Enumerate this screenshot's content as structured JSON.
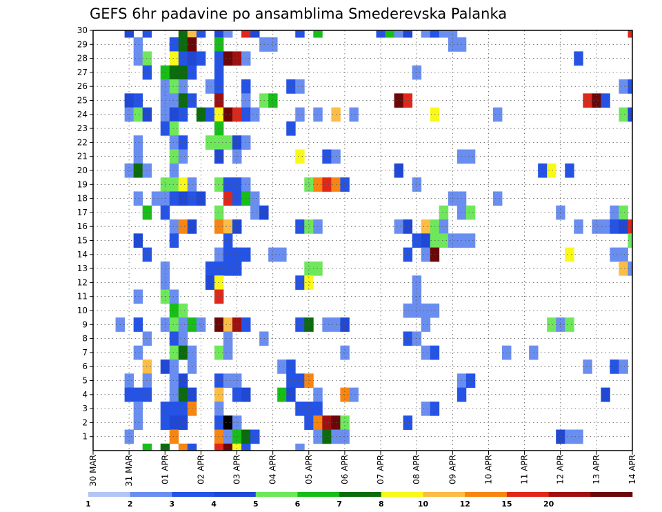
{
  "chart_data": {
    "type": "heatmap",
    "title": "GEFS 6hr padavine po ansamblima Smederevska Palanka",
    "xlabel": "",
    "ylabel": "",
    "x_tick_labels": [
      "30 MAR",
      "31 MAR",
      "01 APR",
      "02 APR",
      "03 APR",
      "04 APR",
      "05 APR",
      "06 APR",
      "07 APR",
      "08 APR",
      "09 APR",
      "10 APR",
      "11 APR",
      "12 APR",
      "13 APR",
      "14 APR"
    ],
    "y_tick_labels": [
      "1",
      "2",
      "3",
      "4",
      "5",
      "6",
      "7",
      "8",
      "9",
      "10",
      "11",
      "12",
      "13",
      "14",
      "15",
      "16",
      "17",
      "18",
      "19",
      "20",
      "21",
      "22",
      "23",
      "24",
      "25",
      "26",
      "27",
      "28",
      "29",
      "30"
    ],
    "x_steps_per_day": 4,
    "x_total_steps": 61,
    "members": 30,
    "grid": true,
    "colorbar": {
      "levels": [
        "1",
        "2",
        "3",
        "4",
        "5",
        "6",
        "7",
        "8",
        "10",
        "12",
        "15",
        "20"
      ],
      "colors": [
        "#b4c5f4",
        "#6a8ef0",
        "#2453e6",
        "#1f48d6",
        "#6ee85a",
        "#17be17",
        "#0c6b0c",
        "#f9f919",
        "#fbbd45",
        "#f68511",
        "#e0281a",
        "#a11010",
        "#6b0707"
      ]
    },
    "cells": [
      [
        4,
        30,
        3
      ],
      [
        6,
        30,
        2
      ],
      [
        10,
        30,
        6
      ],
      [
        11,
        30,
        8
      ],
      [
        12,
        30,
        2
      ],
      [
        14,
        30,
        3
      ],
      [
        15,
        30,
        1
      ],
      [
        17,
        30,
        10
      ],
      [
        18,
        30,
        3
      ],
      [
        23,
        30,
        2
      ],
      [
        25,
        30,
        5
      ],
      [
        32,
        30,
        2
      ],
      [
        33,
        30,
        5
      ],
      [
        34,
        30,
        1
      ],
      [
        35,
        30,
        3
      ],
      [
        37,
        30,
        1
      ],
      [
        38,
        30,
        2
      ],
      [
        39,
        30,
        1
      ],
      [
        40,
        30,
        1
      ],
      [
        60,
        30,
        10
      ],
      [
        5,
        29,
        1
      ],
      [
        9,
        29,
        2
      ],
      [
        10,
        29,
        6
      ],
      [
        11,
        29,
        12
      ],
      [
        14,
        29,
        5
      ],
      [
        19,
        29,
        1
      ],
      [
        20,
        29,
        1
      ],
      [
        40,
        29,
        1
      ],
      [
        41,
        29,
        1
      ],
      [
        5,
        28,
        1
      ],
      [
        6,
        28,
        4
      ],
      [
        9,
        28,
        7
      ],
      [
        10,
        28,
        2
      ],
      [
        11,
        28,
        3
      ],
      [
        12,
        28,
        2
      ],
      [
        14,
        28,
        2
      ],
      [
        15,
        28,
        12
      ],
      [
        16,
        28,
        11
      ],
      [
        17,
        28,
        1
      ],
      [
        54,
        28,
        2
      ],
      [
        6,
        27,
        2
      ],
      [
        8,
        27,
        5
      ],
      [
        9,
        27,
        6
      ],
      [
        10,
        27,
        6
      ],
      [
        11,
        27,
        2
      ],
      [
        14,
        27,
        2
      ],
      [
        36,
        27,
        1
      ],
      [
        8,
        26,
        1
      ],
      [
        9,
        26,
        4
      ],
      [
        10,
        26,
        1
      ],
      [
        13,
        26,
        1
      ],
      [
        14,
        26,
        2
      ],
      [
        17,
        26,
        2
      ],
      [
        22,
        26,
        2
      ],
      [
        23,
        26,
        1
      ],
      [
        59,
        26,
        1
      ],
      [
        60,
        26,
        2
      ],
      [
        4,
        25,
        3
      ],
      [
        5,
        25,
        2
      ],
      [
        8,
        25,
        1
      ],
      [
        9,
        25,
        1
      ],
      [
        10,
        25,
        6
      ],
      [
        11,
        25,
        2
      ],
      [
        14,
        25,
        11
      ],
      [
        17,
        25,
        1
      ],
      [
        19,
        25,
        4
      ],
      [
        20,
        25,
        5
      ],
      [
        34,
        25,
        12
      ],
      [
        35,
        25,
        10
      ],
      [
        55,
        25,
        10
      ],
      [
        56,
        25,
        12
      ],
      [
        57,
        25,
        2
      ],
      [
        4,
        24,
        1
      ],
      [
        5,
        24,
        4
      ],
      [
        6,
        24,
        3
      ],
      [
        8,
        24,
        1
      ],
      [
        9,
        24,
        3
      ],
      [
        10,
        24,
        2
      ],
      [
        12,
        24,
        6
      ],
      [
        13,
        24,
        2
      ],
      [
        14,
        24,
        7
      ],
      [
        15,
        24,
        12
      ],
      [
        16,
        24,
        10
      ],
      [
        17,
        24,
        2
      ],
      [
        18,
        24,
        1
      ],
      [
        23,
        24,
        1
      ],
      [
        25,
        24,
        1
      ],
      [
        27,
        24,
        8
      ],
      [
        29,
        24,
        1
      ],
      [
        38,
        24,
        7
      ],
      [
        45,
        24,
        1
      ],
      [
        59,
        24,
        4
      ],
      [
        60,
        24,
        3
      ],
      [
        8,
        23,
        2
      ],
      [
        9,
        23,
        4
      ],
      [
        14,
        23,
        5
      ],
      [
        22,
        23,
        2
      ],
      [
        5,
        22,
        1
      ],
      [
        9,
        22,
        1
      ],
      [
        10,
        22,
        2
      ],
      [
        13,
        22,
        4
      ],
      [
        14,
        22,
        4
      ],
      [
        15,
        22,
        4
      ],
      [
        16,
        22,
        3
      ],
      [
        17,
        22,
        1
      ],
      [
        5,
        21,
        1
      ],
      [
        9,
        21,
        4
      ],
      [
        10,
        21,
        1
      ],
      [
        14,
        21,
        3
      ],
      [
        16,
        21,
        1
      ],
      [
        23,
        21,
        7
      ],
      [
        26,
        21,
        2
      ],
      [
        27,
        21,
        1
      ],
      [
        41,
        21,
        1
      ],
      [
        42,
        21,
        1
      ],
      [
        4,
        20,
        1
      ],
      [
        5,
        20,
        6
      ],
      [
        6,
        20,
        1
      ],
      [
        9,
        20,
        1
      ],
      [
        34,
        20,
        3
      ],
      [
        50,
        20,
        2
      ],
      [
        51,
        20,
        7
      ],
      [
        53,
        20,
        2
      ],
      [
        8,
        19,
        4
      ],
      [
        9,
        19,
        4
      ],
      [
        10,
        19,
        7
      ],
      [
        11,
        19,
        1
      ],
      [
        14,
        19,
        4
      ],
      [
        15,
        19,
        2
      ],
      [
        16,
        19,
        2
      ],
      [
        17,
        19,
        1
      ],
      [
        24,
        19,
        4
      ],
      [
        25,
        19,
        9
      ],
      [
        26,
        19,
        10
      ],
      [
        27,
        19,
        9
      ],
      [
        28,
        19,
        2
      ],
      [
        36,
        19,
        1
      ],
      [
        5,
        18,
        1
      ],
      [
        7,
        18,
        1
      ],
      [
        8,
        18,
        1
      ],
      [
        9,
        18,
        2
      ],
      [
        10,
        18,
        3
      ],
      [
        11,
        18,
        2
      ],
      [
        12,
        18,
        3
      ],
      [
        15,
        18,
        10
      ],
      [
        16,
        18,
        2
      ],
      [
        17,
        18,
        5
      ],
      [
        18,
        18,
        1
      ],
      [
        40,
        18,
        1
      ],
      [
        41,
        18,
        1
      ],
      [
        45,
        18,
        1
      ],
      [
        6,
        17,
        5
      ],
      [
        8,
        17,
        2
      ],
      [
        14,
        17,
        4
      ],
      [
        18,
        17,
        1
      ],
      [
        19,
        17,
        3
      ],
      [
        39,
        17,
        4
      ],
      [
        41,
        17,
        1
      ],
      [
        42,
        17,
        4
      ],
      [
        52,
        17,
        1
      ],
      [
        58,
        17,
        1
      ],
      [
        59,
        17,
        4
      ],
      [
        9,
        16,
        1
      ],
      [
        10,
        16,
        9
      ],
      [
        11,
        16,
        3
      ],
      [
        14,
        16,
        9
      ],
      [
        15,
        16,
        8
      ],
      [
        16,
        16,
        3
      ],
      [
        23,
        16,
        2
      ],
      [
        24,
        16,
        4
      ],
      [
        25,
        16,
        1
      ],
      [
        34,
        16,
        1
      ],
      [
        35,
        16,
        3
      ],
      [
        37,
        16,
        8
      ],
      [
        38,
        16,
        4
      ],
      [
        39,
        16,
        1
      ],
      [
        54,
        16,
        1
      ],
      [
        56,
        16,
        1
      ],
      [
        57,
        16,
        1
      ],
      [
        58,
        16,
        2
      ],
      [
        59,
        16,
        3
      ],
      [
        60,
        16,
        10
      ],
      [
        61,
        16,
        7
      ],
      [
        5,
        15,
        3
      ],
      [
        9,
        15,
        2
      ],
      [
        15,
        15,
        2
      ],
      [
        36,
        15,
        2
      ],
      [
        37,
        15,
        3
      ],
      [
        38,
        15,
        4
      ],
      [
        39,
        15,
        4
      ],
      [
        40,
        15,
        1
      ],
      [
        41,
        15,
        1
      ],
      [
        42,
        15,
        1
      ],
      [
        60,
        15,
        4
      ],
      [
        6,
        14,
        2
      ],
      [
        14,
        14,
        1
      ],
      [
        15,
        14,
        2
      ],
      [
        16,
        14,
        2
      ],
      [
        17,
        14,
        2
      ],
      [
        20,
        14,
        1
      ],
      [
        21,
        14,
        1
      ],
      [
        35,
        14,
        2
      ],
      [
        37,
        14,
        1
      ],
      [
        38,
        14,
        12
      ],
      [
        53,
        14,
        7
      ],
      [
        58,
        14,
        1
      ],
      [
        59,
        14,
        1
      ],
      [
        8,
        13,
        1
      ],
      [
        13,
        13,
        2
      ],
      [
        14,
        13,
        2
      ],
      [
        15,
        13,
        2
      ],
      [
        16,
        13,
        2
      ],
      [
        24,
        13,
        4
      ],
      [
        25,
        13,
        4
      ],
      [
        59,
        13,
        8
      ],
      [
        60,
        13,
        1
      ],
      [
        8,
        12,
        1
      ],
      [
        13,
        12,
        3
      ],
      [
        14,
        12,
        7
      ],
      [
        23,
        12,
        2
      ],
      [
        24,
        12,
        7
      ],
      [
        36,
        12,
        1
      ],
      [
        5,
        11,
        1
      ],
      [
        8,
        11,
        4
      ],
      [
        9,
        11,
        1
      ],
      [
        14,
        11,
        10
      ],
      [
        36,
        11,
        1
      ],
      [
        9,
        10,
        5
      ],
      [
        10,
        10,
        4
      ],
      [
        35,
        10,
        1
      ],
      [
        36,
        10,
        1
      ],
      [
        37,
        10,
        1
      ],
      [
        38,
        10,
        1
      ],
      [
        3,
        9,
        1
      ],
      [
        5,
        9,
        2
      ],
      [
        8,
        9,
        1
      ],
      [
        9,
        9,
        4
      ],
      [
        10,
        9,
        1
      ],
      [
        11,
        9,
        5
      ],
      [
        12,
        9,
        1
      ],
      [
        14,
        9,
        12
      ],
      [
        15,
        9,
        8
      ],
      [
        16,
        9,
        11
      ],
      [
        17,
        9,
        2
      ],
      [
        23,
        9,
        2
      ],
      [
        24,
        9,
        6
      ],
      [
        26,
        9,
        1
      ],
      [
        27,
        9,
        1
      ],
      [
        28,
        9,
        3
      ],
      [
        37,
        9,
        1
      ],
      [
        51,
        9,
        4
      ],
      [
        52,
        9,
        1
      ],
      [
        53,
        9,
        4
      ],
      [
        6,
        8,
        1
      ],
      [
        9,
        8,
        2
      ],
      [
        10,
        8,
        1
      ],
      [
        15,
        8,
        1
      ],
      [
        19,
        8,
        1
      ],
      [
        35,
        8,
        2
      ],
      [
        36,
        8,
        1
      ],
      [
        5,
        7,
        1
      ],
      [
        9,
        7,
        4
      ],
      [
        10,
        7,
        6
      ],
      [
        11,
        7,
        1
      ],
      [
        14,
        7,
        4
      ],
      [
        15,
        7,
        1
      ],
      [
        28,
        7,
        1
      ],
      [
        37,
        7,
        1
      ],
      [
        38,
        7,
        2
      ],
      [
        46,
        7,
        1
      ],
      [
        49,
        7,
        1
      ],
      [
        6,
        6,
        8
      ],
      [
        8,
        6,
        3
      ],
      [
        9,
        6,
        1
      ],
      [
        11,
        6,
        1
      ],
      [
        21,
        6,
        1
      ],
      [
        22,
        6,
        2
      ],
      [
        55,
        6,
        1
      ],
      [
        58,
        6,
        2
      ],
      [
        59,
        6,
        1
      ],
      [
        4,
        5,
        1
      ],
      [
        6,
        5,
        1
      ],
      [
        9,
        5,
        1
      ],
      [
        10,
        5,
        3
      ],
      [
        14,
        5,
        2
      ],
      [
        15,
        5,
        1
      ],
      [
        16,
        5,
        1
      ],
      [
        22,
        5,
        2
      ],
      [
        23,
        5,
        2
      ],
      [
        24,
        5,
        9
      ],
      [
        41,
        5,
        1
      ],
      [
        42,
        5,
        2
      ],
      [
        4,
        4,
        2
      ],
      [
        5,
        4,
        2
      ],
      [
        6,
        4,
        2
      ],
      [
        9,
        4,
        1
      ],
      [
        10,
        4,
        6
      ],
      [
        11,
        4,
        3
      ],
      [
        14,
        4,
        8
      ],
      [
        16,
        4,
        2
      ],
      [
        17,
        4,
        3
      ],
      [
        21,
        4,
        5
      ],
      [
        22,
        4,
        3
      ],
      [
        25,
        4,
        1
      ],
      [
        28,
        4,
        9
      ],
      [
        29,
        4,
        1
      ],
      [
        41,
        4,
        2
      ],
      [
        57,
        4,
        3
      ],
      [
        5,
        3,
        1
      ],
      [
        8,
        3,
        2
      ],
      [
        9,
        3,
        2
      ],
      [
        10,
        3,
        2
      ],
      [
        11,
        3,
        9
      ],
      [
        14,
        3,
        1
      ],
      [
        23,
        3,
        2
      ],
      [
        24,
        3,
        2
      ],
      [
        25,
        3,
        2
      ],
      [
        37,
        3,
        1
      ],
      [
        38,
        3,
        2
      ],
      [
        5,
        2,
        1
      ],
      [
        8,
        2,
        2
      ],
      [
        9,
        2,
        3
      ],
      [
        10,
        2,
        3
      ],
      [
        14,
        2,
        2
      ],
      [
        15,
        2,
        13
      ],
      [
        16,
        2,
        1
      ],
      [
        24,
        2,
        2
      ],
      [
        25,
        2,
        9
      ],
      [
        26,
        2,
        11
      ],
      [
        27,
        2,
        12
      ],
      [
        28,
        2,
        4
      ],
      [
        35,
        2,
        2
      ],
      [
        4,
        1,
        1
      ],
      [
        9,
        1,
        9
      ],
      [
        14,
        1,
        9
      ],
      [
        15,
        1,
        1
      ],
      [
        16,
        1,
        5
      ],
      [
        17,
        1,
        6
      ],
      [
        18,
        1,
        2
      ],
      [
        25,
        1,
        1
      ],
      [
        26,
        1,
        6
      ],
      [
        27,
        1,
        1
      ],
      [
        28,
        1,
        1
      ],
      [
        52,
        1,
        3
      ],
      [
        53,
        1,
        1
      ],
      [
        54,
        1,
        1
      ],
      [
        6,
        0,
        5
      ],
      [
        8,
        0,
        6
      ],
      [
        10,
        0,
        9
      ],
      [
        11,
        0,
        2
      ],
      [
        14,
        0,
        10
      ],
      [
        15,
        0,
        12
      ],
      [
        16,
        0,
        7
      ],
      [
        17,
        0,
        2
      ],
      [
        23,
        0,
        1
      ]
    ]
  }
}
